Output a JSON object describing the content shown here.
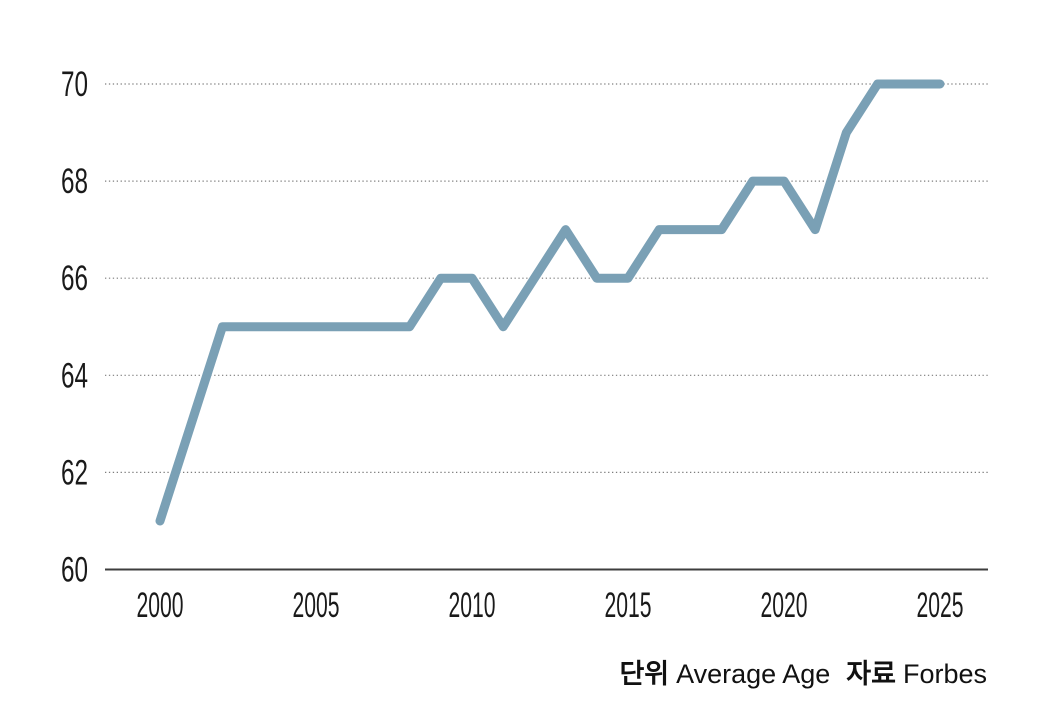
{
  "chart_data": {
    "type": "line",
    "title": "",
    "xlabel": "",
    "ylabel": "",
    "x": [
      2000,
      2001,
      2002,
      2003,
      2004,
      2005,
      2006,
      2007,
      2008,
      2009,
      2010,
      2011,
      2012,
      2013,
      2014,
      2015,
      2016,
      2017,
      2018,
      2019,
      2020,
      2021,
      2022,
      2023,
      2024,
      2025
    ],
    "series": [
      {
        "name": "Average Age",
        "values": [
          61,
          63,
          65,
          65,
          65,
          65,
          65,
          65,
          65,
          66,
          66,
          65,
          66,
          67,
          66,
          66,
          67,
          67,
          67,
          68,
          68,
          67,
          69,
          70,
          70,
          70
        ]
      }
    ],
    "ylim": [
      60,
      70
    ],
    "yticks": [
      60,
      62,
      64,
      66,
      68,
      70
    ],
    "xticks": [
      2000,
      2005,
      2010,
      2015,
      2020,
      2025
    ],
    "grid": "horizontal-dotted",
    "legend_position": "none",
    "colors": {
      "line": "#7aa0b5",
      "axis": "#3d3d3d",
      "gridline": "#7d7d7d",
      "tick_label": "#1a1a1a"
    }
  },
  "caption": {
    "unit_label": "단위",
    "unit_value": "Average Age",
    "source_label": "자료",
    "source_value": "Forbes"
  }
}
